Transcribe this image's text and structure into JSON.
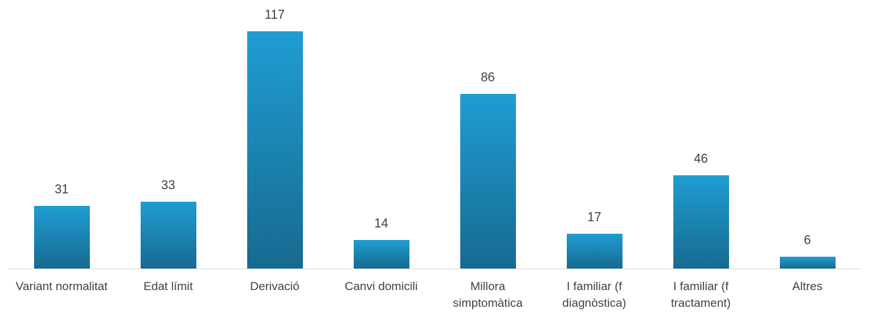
{
  "chart_data": {
    "type": "bar",
    "categories": [
      "Variant normalitat",
      "Edat límit",
      "Derivació",
      "Canvi domicili",
      "Millora simptomàtica",
      "I familiar (f diagnòstica)",
      "I familiar (f tractament)",
      "Altres"
    ],
    "values": [
      31,
      33,
      117,
      14,
      86,
      17,
      46,
      6
    ],
    "color": "#1f9dd2"
  }
}
